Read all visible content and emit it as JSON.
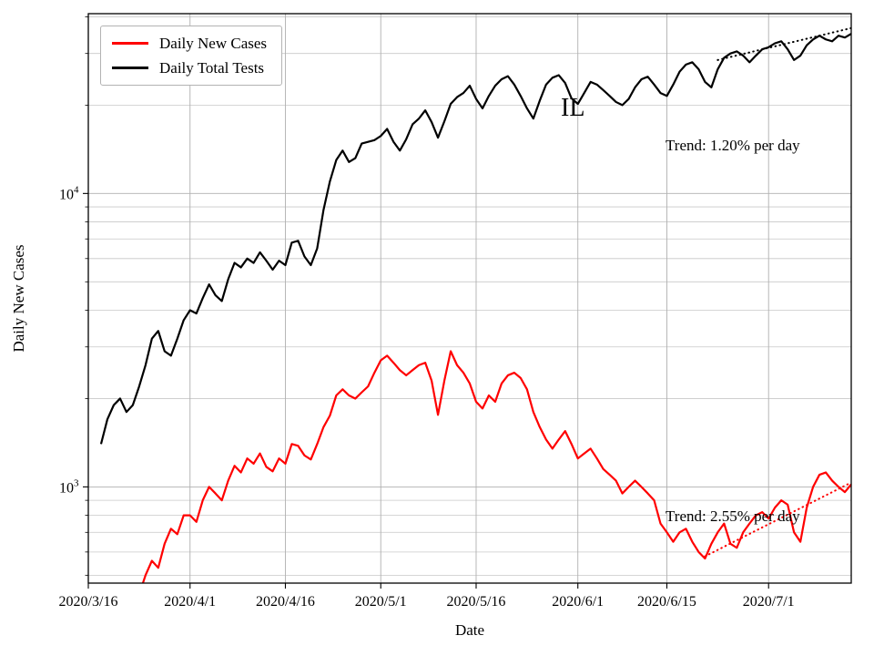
{
  "figure": {
    "annotations": {
      "state_label": "IL",
      "tests_trend_label": "Trend: 1.20% per day",
      "cases_trend_label": "Trend: 2.55% per day"
    },
    "legend": {
      "entries": [
        {
          "label": "Daily New Cases",
          "color": "#ff0000"
        },
        {
          "label": "Daily Total Tests",
          "color": "#000000"
        }
      ]
    }
  },
  "chart_data": {
    "type": "line",
    "title": "",
    "xlabel": "Date",
    "ylabel": "Daily New Cases",
    "yscale": "log",
    "grid": true,
    "legend_position": "upper left",
    "xlim": [
      0,
      120
    ],
    "ylim": [
      470,
      41000
    ],
    "x_unit": "days since 2020/3/16",
    "x_ticks": [
      0,
      16,
      31,
      46,
      61,
      77,
      91,
      107
    ],
    "x_tick_labels": [
      "2020/3/16",
      "2020/4/1",
      "2020/4/16",
      "2020/5/1",
      "2020/5/16",
      "2020/6/1",
      "2020/6/15",
      "2020/7/1"
    ],
    "y_ticks": [
      1000,
      10000
    ],
    "y_tick_labels": [
      "10^3",
      "10^4"
    ],
    "start_date": "2020/3/18",
    "x_start": 2,
    "series": [
      {
        "name": "Daily New Cases",
        "color": "#ff0000",
        "values": [
          260,
          300,
          330,
          360,
          400,
          380,
          430,
          500,
          560,
          530,
          640,
          720,
          690,
          800,
          800,
          760,
          900,
          1000,
          950,
          900,
          1050,
          1180,
          1120,
          1250,
          1200,
          1300,
          1170,
          1130,
          1250,
          1200,
          1400,
          1380,
          1280,
          1240,
          1400,
          1600,
          1750,
          2050,
          2150,
          2050,
          2000,
          2100,
          2200,
          2450,
          2700,
          2800,
          2650,
          2500,
          2400,
          2500,
          2600,
          2650,
          2300,
          1760,
          2300,
          2900,
          2600,
          2450,
          2250,
          1950,
          1850,
          2050,
          1950,
          2250,
          2400,
          2450,
          2350,
          2150,
          1800,
          1600,
          1450,
          1350,
          1450,
          1550,
          1400,
          1250,
          1300,
          1350,
          1250,
          1150,
          1100,
          1050,
          950,
          1000,
          1050,
          1000,
          950,
          900,
          750,
          700,
          650,
          700,
          720,
          650,
          600,
          570,
          640,
          700,
          750,
          640,
          620,
          700,
          750,
          800,
          820,
          780,
          850,
          900,
          870,
          700,
          650,
          850,
          1000,
          1100,
          1120,
          1050,
          1000,
          960,
          1020
        ]
      },
      {
        "name": "Daily Total Tests",
        "color": "#000000",
        "values": [
          1400,
          1700,
          1900,
          2000,
          1800,
          1900,
          2200,
          2600,
          3200,
          3400,
          2900,
          2800,
          3200,
          3700,
          4000,
          3900,
          4400,
          4900,
          4500,
          4300,
          5100,
          5800,
          5600,
          6000,
          5800,
          6300,
          5900,
          5500,
          5900,
          5700,
          6800,
          6900,
          6100,
          5700,
          6500,
          8800,
          11000,
          13000,
          14000,
          12800,
          13200,
          14800,
          15000,
          15200,
          15700,
          16600,
          15000,
          14000,
          15300,
          17200,
          18000,
          19200,
          17500,
          15500,
          17600,
          20200,
          21300,
          22000,
          23300,
          21000,
          19500,
          21500,
          23300,
          24500,
          25100,
          23500,
          21500,
          19500,
          18000,
          20700,
          23500,
          24800,
          25300,
          23800,
          21100,
          20200,
          22000,
          24000,
          23500,
          22500,
          21500,
          20500,
          20000,
          21000,
          23000,
          24500,
          25000,
          23500,
          22000,
          21500,
          23500,
          26000,
          27500,
          28000,
          26500,
          24000,
          23000,
          26500,
          29000,
          30000,
          30500,
          29500,
          28000,
          29500,
          31000,
          31500,
          32500,
          33000,
          31000,
          28500,
          29500,
          32000,
          33500,
          34500,
          33500,
          33000,
          34500,
          34000,
          35000
        ]
      }
    ],
    "trends": [
      {
        "series": "Daily Total Tests",
        "rate_pct_per_day": 1.2,
        "start_x": 99,
        "start_value": 28500,
        "color": "#000000"
      },
      {
        "series": "Daily New Cases",
        "rate_pct_per_day": 2.55,
        "start_x": 97,
        "start_value": 580,
        "color": "#ff0000"
      }
    ]
  }
}
